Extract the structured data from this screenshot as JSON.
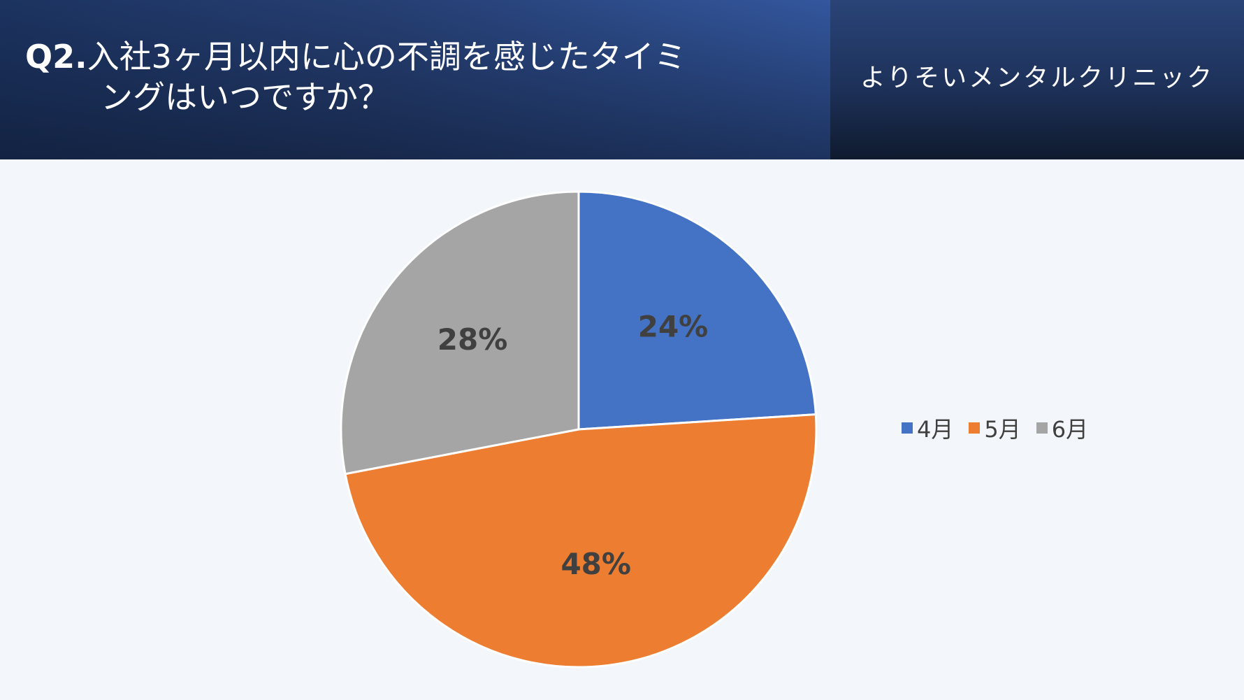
{
  "header": {
    "title_q": "Q2.",
    "title_line1": "入社3ヶ月以内に心の不調を感じたタイミ",
    "title_line2": "ングはいつですか？",
    "clinic_name": "よりそいメンタルクリニック"
  },
  "chart_data": {
    "type": "pie",
    "categories": [
      "4月",
      "5月",
      "6月"
    ],
    "values": [
      24,
      48,
      28
    ],
    "data_labels": [
      "24%",
      "48%",
      "28%"
    ],
    "colors": [
      "#4472c4",
      "#ed7d31",
      "#a5a5a5"
    ],
    "start": "12 o'clock, clockwise",
    "legend": "right"
  }
}
